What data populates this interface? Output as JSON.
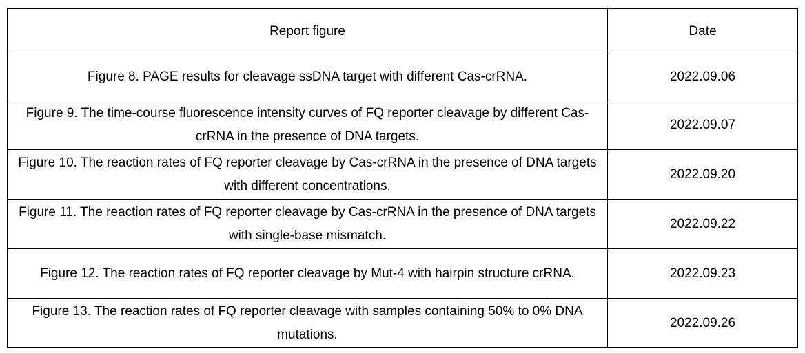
{
  "table": {
    "headers": {
      "figure": "Report figure",
      "date": "Date"
    },
    "rows": [
      {
        "figure": "Figure 8. PAGE results for cleavage ssDNA target with different Cas-crRNA.",
        "date": "2022.09.06"
      },
      {
        "figure": "Figure 9. The time-course fluorescence intensity curves of FQ reporter cleavage by different Cas-crRNA in the presence of DNA targets.",
        "date": "2022.09.07"
      },
      {
        "figure": "Figure 10. The reaction rates of FQ reporter cleavage by Cas-crRNA in the presence of DNA targets with different concentrations.",
        "date": "2022.09.20"
      },
      {
        "figure": "Figure 11. The reaction rates of FQ reporter cleavage by Cas-crRNA in the presence of DNA targets with single-base mismatch.",
        "date": "2022.09.22"
      },
      {
        "figure": "Figure 12. The reaction rates of FQ reporter cleavage by Mut-4 with hairpin structure crRNA.",
        "date": "2022.09.23"
      },
      {
        "figure": "Figure 13. The reaction rates of FQ reporter cleavage with samples containing 50% to 0% DNA mutations.",
        "date": "2022.09.26"
      }
    ]
  }
}
